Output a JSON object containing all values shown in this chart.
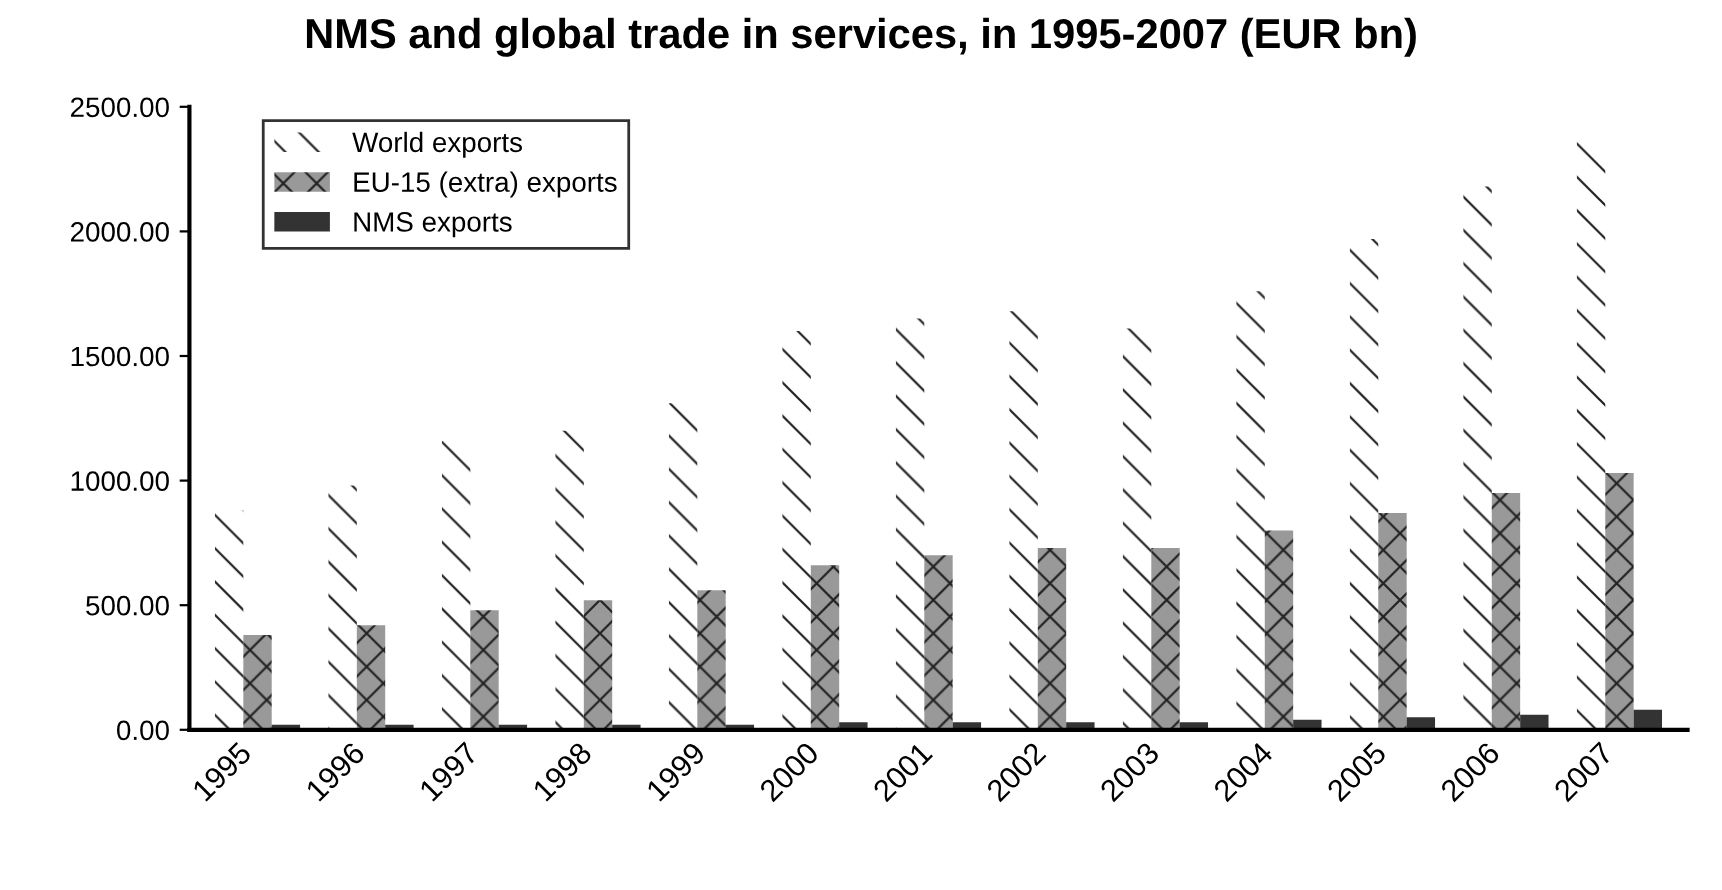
{
  "chart_data": {
    "type": "bar",
    "title": "NMS and global trade in services, in 1995-2007 (EUR bn)",
    "categories": [
      "1995",
      "1996",
      "1997",
      "1998",
      "1999",
      "2000",
      "2001",
      "2002",
      "2003",
      "2004",
      "2005",
      "2006",
      "2007"
    ],
    "series": [
      {
        "name": "World exports",
        "color": "#ffffff",
        "values": [
          880,
          980,
          1160,
          1200,
          1310,
          1600,
          1650,
          1680,
          1610,
          1760,
          1970,
          2180,
          2360
        ]
      },
      {
        "name": "EU-15 (extra) exports",
        "color": "#999999",
        "values": [
          380,
          420,
          480,
          520,
          560,
          660,
          700,
          730,
          730,
          800,
          870,
          950,
          1030
        ]
      },
      {
        "name": "NMS exports",
        "color": "#333333",
        "values": [
          20,
          20,
          20,
          20,
          20,
          30,
          30,
          30,
          30,
          40,
          50,
          60,
          80
        ]
      }
    ],
    "ylim": [
      0,
      2500
    ],
    "yticks": [
      {
        "value": 0,
        "label": "0.00"
      },
      {
        "value": 500,
        "label": "500.00"
      },
      {
        "value": 1000,
        "label": "1000.00"
      },
      {
        "value": 1500,
        "label": "1500.00"
      },
      {
        "value": 2000,
        "label": "2000.00"
      },
      {
        "value": 2500,
        "label": "2500.00"
      }
    ],
    "legend": "top left",
    "grid": false
  }
}
